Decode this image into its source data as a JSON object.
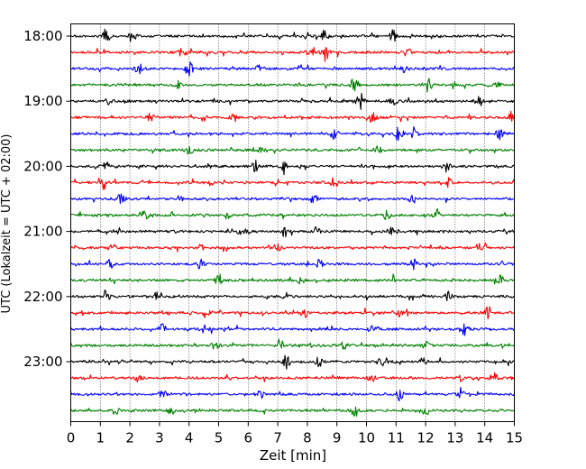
{
  "chart_data": {
    "type": "line",
    "title": "",
    "xlabel": "Zeit  [min]",
    "ylabel": "UTC (Lokalzeit = UTC + 02:00)",
    "xlim": [
      0,
      15
    ],
    "x_ticks": [
      "0",
      "1",
      "2",
      "3",
      "4",
      "5",
      "6",
      "7",
      "8",
      "9",
      "10",
      "11",
      "12",
      "13",
      "14",
      "15"
    ],
    "y_ticks": [
      {
        "label": "18:00",
        "trace_index": 0
      },
      {
        "label": "19:00",
        "trace_index": 4
      },
      {
        "label": "20:00",
        "trace_index": 8
      },
      {
        "label": "21:00",
        "trace_index": 12
      },
      {
        "label": "22:00",
        "trace_index": 16
      },
      {
        "label": "23:00",
        "trace_index": 20
      }
    ],
    "grid": "vertical dotted at each minute",
    "trace_interval_minutes": 15,
    "color_cycle": [
      "#000000",
      "#ff0000",
      "#0000ff",
      "#008000"
    ],
    "series": [
      {
        "start": "18:00",
        "color": "#000000",
        "events": [
          [
            1.2,
            0.8
          ],
          [
            2.1,
            0.4
          ],
          [
            8.6,
            0.5
          ],
          [
            10.9,
            0.6
          ]
        ]
      },
      {
        "start": "18:15",
        "color": "#ff0000",
        "events": [
          [
            3.8,
            0.6
          ],
          [
            8.1,
            0.7
          ],
          [
            8.6,
            0.9
          ],
          [
            11.4,
            0.5
          ]
        ]
      },
      {
        "start": "18:30",
        "color": "#0000ff",
        "events": [
          [
            2.3,
            0.5
          ],
          [
            4.0,
            0.9
          ],
          [
            6.4,
            0.4
          ],
          [
            11.3,
            0.6
          ]
        ]
      },
      {
        "start": "18:45",
        "color": "#008000",
        "events": [
          [
            3.6,
            0.4
          ],
          [
            9.6,
            0.9
          ],
          [
            12.1,
            0.7
          ],
          [
            14.4,
            0.5
          ]
        ]
      },
      {
        "start": "19:00",
        "color": "#000000",
        "events": [
          [
            1.3,
            0.4
          ],
          [
            9.8,
            1.0
          ],
          [
            10.9,
            0.4
          ],
          [
            13.8,
            0.5
          ]
        ]
      },
      {
        "start": "19:15",
        "color": "#ff0000",
        "events": [
          [
            2.7,
            0.4
          ],
          [
            5.5,
            0.4
          ],
          [
            10.2,
            0.5
          ],
          [
            14.9,
            0.6
          ]
        ]
      },
      {
        "start": "19:30",
        "color": "#0000ff",
        "events": [
          [
            8.9,
            0.5
          ],
          [
            11.1,
            0.8
          ],
          [
            11.6,
            0.9
          ],
          [
            14.5,
            0.5
          ]
        ]
      },
      {
        "start": "19:45",
        "color": "#008000",
        "events": [
          [
            4.0,
            0.5
          ],
          [
            6.5,
            0.4
          ],
          [
            10.4,
            0.4
          ]
        ]
      },
      {
        "start": "20:00",
        "color": "#000000",
        "events": [
          [
            1.2,
            0.5
          ],
          [
            6.2,
            0.7
          ],
          [
            7.2,
            0.5
          ],
          [
            12.7,
            0.5
          ]
        ]
      },
      {
        "start": "20:15",
        "color": "#ff0000",
        "events": [
          [
            1.1,
            0.7
          ],
          [
            4.7,
            0.4
          ],
          [
            8.9,
            0.6
          ],
          [
            12.8,
            0.5
          ]
        ]
      },
      {
        "start": "20:30",
        "color": "#0000ff",
        "events": [
          [
            1.7,
            0.5
          ],
          [
            3.7,
            0.4
          ],
          [
            8.2,
            0.5
          ],
          [
            11.5,
            0.4
          ]
        ]
      },
      {
        "start": "20:45",
        "color": "#008000",
        "events": [
          [
            2.5,
            0.5
          ],
          [
            5.3,
            0.4
          ],
          [
            10.7,
            0.5
          ],
          [
            12.4,
            0.6
          ]
        ]
      },
      {
        "start": "21:00",
        "color": "#000000",
        "events": [
          [
            5.8,
            0.6
          ],
          [
            7.3,
            0.5
          ],
          [
            8.3,
            0.5
          ],
          [
            10.8,
            0.4
          ]
        ]
      },
      {
        "start": "21:15",
        "color": "#ff0000",
        "events": [
          [
            1.4,
            0.4
          ],
          [
            4.4,
            0.4
          ],
          [
            7.0,
            0.4
          ],
          [
            14.0,
            0.6
          ]
        ]
      },
      {
        "start": "21:30",
        "color": "#0000ff",
        "events": [
          [
            1.3,
            0.5
          ],
          [
            4.4,
            0.6
          ],
          [
            8.4,
            0.5
          ],
          [
            11.6,
            0.5
          ]
        ]
      },
      {
        "start": "21:45",
        "color": "#008000",
        "events": [
          [
            5.0,
            0.5
          ],
          [
            7.8,
            0.4
          ],
          [
            10.9,
            0.4
          ],
          [
            14.5,
            0.5
          ]
        ]
      },
      {
        "start": "22:00",
        "color": "#000000",
        "events": [
          [
            1.2,
            0.4
          ],
          [
            2.9,
            0.4
          ],
          [
            7.3,
            0.4
          ],
          [
            12.8,
            0.6
          ]
        ]
      },
      {
        "start": "22:15",
        "color": "#ff0000",
        "events": [
          [
            4.6,
            0.5
          ],
          [
            7.9,
            0.4
          ],
          [
            11.1,
            0.4
          ],
          [
            14.1,
            0.6
          ]
        ]
      },
      {
        "start": "22:30",
        "color": "#0000ff",
        "events": [
          [
            3.1,
            0.5
          ],
          [
            4.5,
            0.5
          ],
          [
            10.2,
            0.5
          ],
          [
            13.3,
            0.7
          ]
        ]
      },
      {
        "start": "22:45",
        "color": "#008000",
        "events": [
          [
            4.9,
            0.6
          ],
          [
            7.1,
            0.5
          ],
          [
            9.2,
            0.6
          ],
          [
            12.0,
            0.4
          ]
        ]
      },
      {
        "start": "23:00",
        "color": "#000000",
        "events": [
          [
            7.3,
            0.7
          ],
          [
            8.4,
            0.5
          ],
          [
            10.6,
            0.5
          ],
          [
            11.9,
            0.4
          ]
        ]
      },
      {
        "start": "23:15",
        "color": "#ff0000",
        "events": [
          [
            2.3,
            0.4
          ],
          [
            10.2,
            0.5
          ],
          [
            13.2,
            0.4
          ],
          [
            14.3,
            0.6
          ]
        ]
      },
      {
        "start": "23:30",
        "color": "#0000ff",
        "events": [
          [
            3.1,
            0.5
          ],
          [
            6.4,
            0.4
          ],
          [
            11.1,
            0.7
          ],
          [
            13.2,
            0.4
          ]
        ]
      },
      {
        "start": "23:45",
        "color": "#008000",
        "events": [
          [
            1.5,
            0.5
          ],
          [
            3.4,
            0.4
          ],
          [
            9.6,
            0.5
          ],
          [
            12.0,
            0.5
          ]
        ]
      }
    ]
  }
}
